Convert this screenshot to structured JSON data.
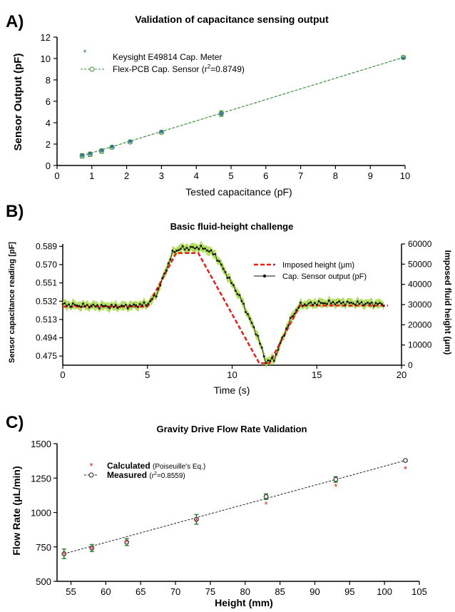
{
  "chart_data": [
    {
      "panel_label": "A)",
      "type": "scatter",
      "title": "Validation of capacitance sensing output",
      "xlabel": "Tested capacitance (pF)",
      "ylabel": "Sensor Output (pF)",
      "xlim": [
        0,
        10
      ],
      "ylim": [
        0,
        12
      ],
      "xticks": [
        "0",
        "1",
        "2",
        "3",
        "4",
        "5",
        "6",
        "7",
        "8",
        "9",
        "10"
      ],
      "yticks": [
        "0",
        "2",
        "4",
        "6",
        "8",
        "10",
        "12"
      ],
      "grid": false,
      "legend_position": "top-left",
      "series": [
        {
          "name": "Keysight E49814 Cap. Meter",
          "marker": "asterisk",
          "color": "#2e6f9e",
          "x": [
            0.72,
            0.95,
            1.28,
            1.58,
            2.1,
            3.0,
            4.72,
            9.95
          ],
          "y": [
            0.95,
            1.1,
            1.4,
            1.75,
            2.25,
            3.15,
            4.85,
            10.05
          ]
        },
        {
          "name": "Flex-PCB Cap. Sensor",
          "name_r2": "(r",
          "name_sup": "2",
          "name_tail": "=0.8749)",
          "marker": "open-circle",
          "line": "dashed",
          "color": "#3a8f3a",
          "x": [
            0.72,
            0.95,
            1.28,
            1.58,
            2.1,
            3.0,
            4.72,
            9.95
          ],
          "y": [
            0.9,
            1.05,
            1.35,
            1.7,
            2.2,
            3.1,
            4.85,
            10.1
          ],
          "err": [
            0.2,
            0.2,
            0.2,
            0.15,
            0.12,
            0.15,
            0.25,
            0.15
          ]
        }
      ]
    },
    {
      "panel_label": "B)",
      "type": "line",
      "title": "Basic fluid-height challenge",
      "xlabel": "Time (s)",
      "ylabel": "Sensor capacitance reading [pF]",
      "y2label": "Imposed fluid height (μm)",
      "xlim": [
        0,
        20
      ],
      "ylim": [
        0.4655,
        0.5915
      ],
      "y2lim": [
        0,
        60000
      ],
      "xticks": [
        "0",
        "5",
        "10",
        "15",
        "20"
      ],
      "yticks": [
        "0.475",
        "0.494",
        "0.513",
        "0.532",
        "0.551",
        "0.570",
        "0.589"
      ],
      "y2ticks": [
        "0",
        "10000",
        "20000",
        "30000",
        "40000",
        "50000",
        "60000"
      ],
      "grid": false,
      "legend_position": "top-right",
      "series": [
        {
          "name": "Imposed height (μm)",
          "axis": "right",
          "line": "dashed",
          "color": "#e8201a",
          "x": [
            0,
            5,
            6.7,
            8.0,
            11.6,
            12.2,
            14.0,
            19.2
          ],
          "y": [
            29000,
            29000,
            55500,
            55500,
            1000,
            1000,
            29500,
            29500
          ]
        },
        {
          "name": "Cap. Sensor output (pF)",
          "axis": "left",
          "marker": "dot",
          "color": "#111111",
          "band_color": "#a8d84a",
          "x": [
            0,
            1,
            2,
            3,
            4,
            5,
            5.5,
            6.0,
            6.5,
            7.0,
            7.5,
            8.0,
            8.5,
            9.0,
            9.5,
            10.0,
            10.5,
            11.0,
            11.5,
            12.0,
            12.5,
            13.0,
            13.5,
            14.0,
            15.0,
            16.0,
            17.0,
            18.0,
            19.0
          ],
          "y": [
            0.5285,
            0.5275,
            0.527,
            0.5265,
            0.527,
            0.529,
            0.538,
            0.56,
            0.583,
            0.587,
            0.587,
            0.588,
            0.586,
            0.58,
            0.565,
            0.55,
            0.535,
            0.515,
            0.496,
            0.469,
            0.472,
            0.495,
            0.515,
            0.528,
            0.53,
            0.5305,
            0.53,
            0.5295,
            0.529
          ]
        }
      ]
    },
    {
      "panel_label": "C)",
      "type": "scatter",
      "title": "Gravity Drive Flow Rate Validation",
      "xlabel": "Height (mm)",
      "ylabel_pre": "Flow Rate (",
      "ylabel_mu": "μ",
      "ylabel_post": "L/min)",
      "xlim": [
        53,
        105
      ],
      "ylim": [
        500,
        1500
      ],
      "xticks": [
        "55",
        "60",
        "65",
        "70",
        "75",
        "80",
        "85",
        "90",
        "95",
        "100",
        "105"
      ],
      "yticks": [
        "500",
        "750",
        "1000",
        "1250",
        "1500"
      ],
      "grid": false,
      "legend_position": "top-left",
      "series": [
        {
          "name": "Calculated",
          "note": "(Poiseuille's Eq.)",
          "marker": "asterisk",
          "color": "#e8201a",
          "x": [
            54,
            58,
            63,
            73,
            83,
            93,
            103
          ],
          "y": [
            700,
            738,
            790,
            945,
            1065,
            1195,
            1320
          ]
        },
        {
          "name": "Measured",
          "note_pre": "(r",
          "note_sup": "2",
          "note_post": "=0.8559)",
          "marker": "open-circle",
          "line": "dashed",
          "color": "#222222",
          "err_color": "#2a8a2a",
          "x": [
            54,
            58,
            63,
            73,
            83,
            93,
            103
          ],
          "y": [
            700,
            742,
            785,
            950,
            1115,
            1240,
            1378
          ],
          "err": [
            35,
            25,
            25,
            35,
            20,
            20,
            0
          ]
        }
      ]
    }
  ]
}
